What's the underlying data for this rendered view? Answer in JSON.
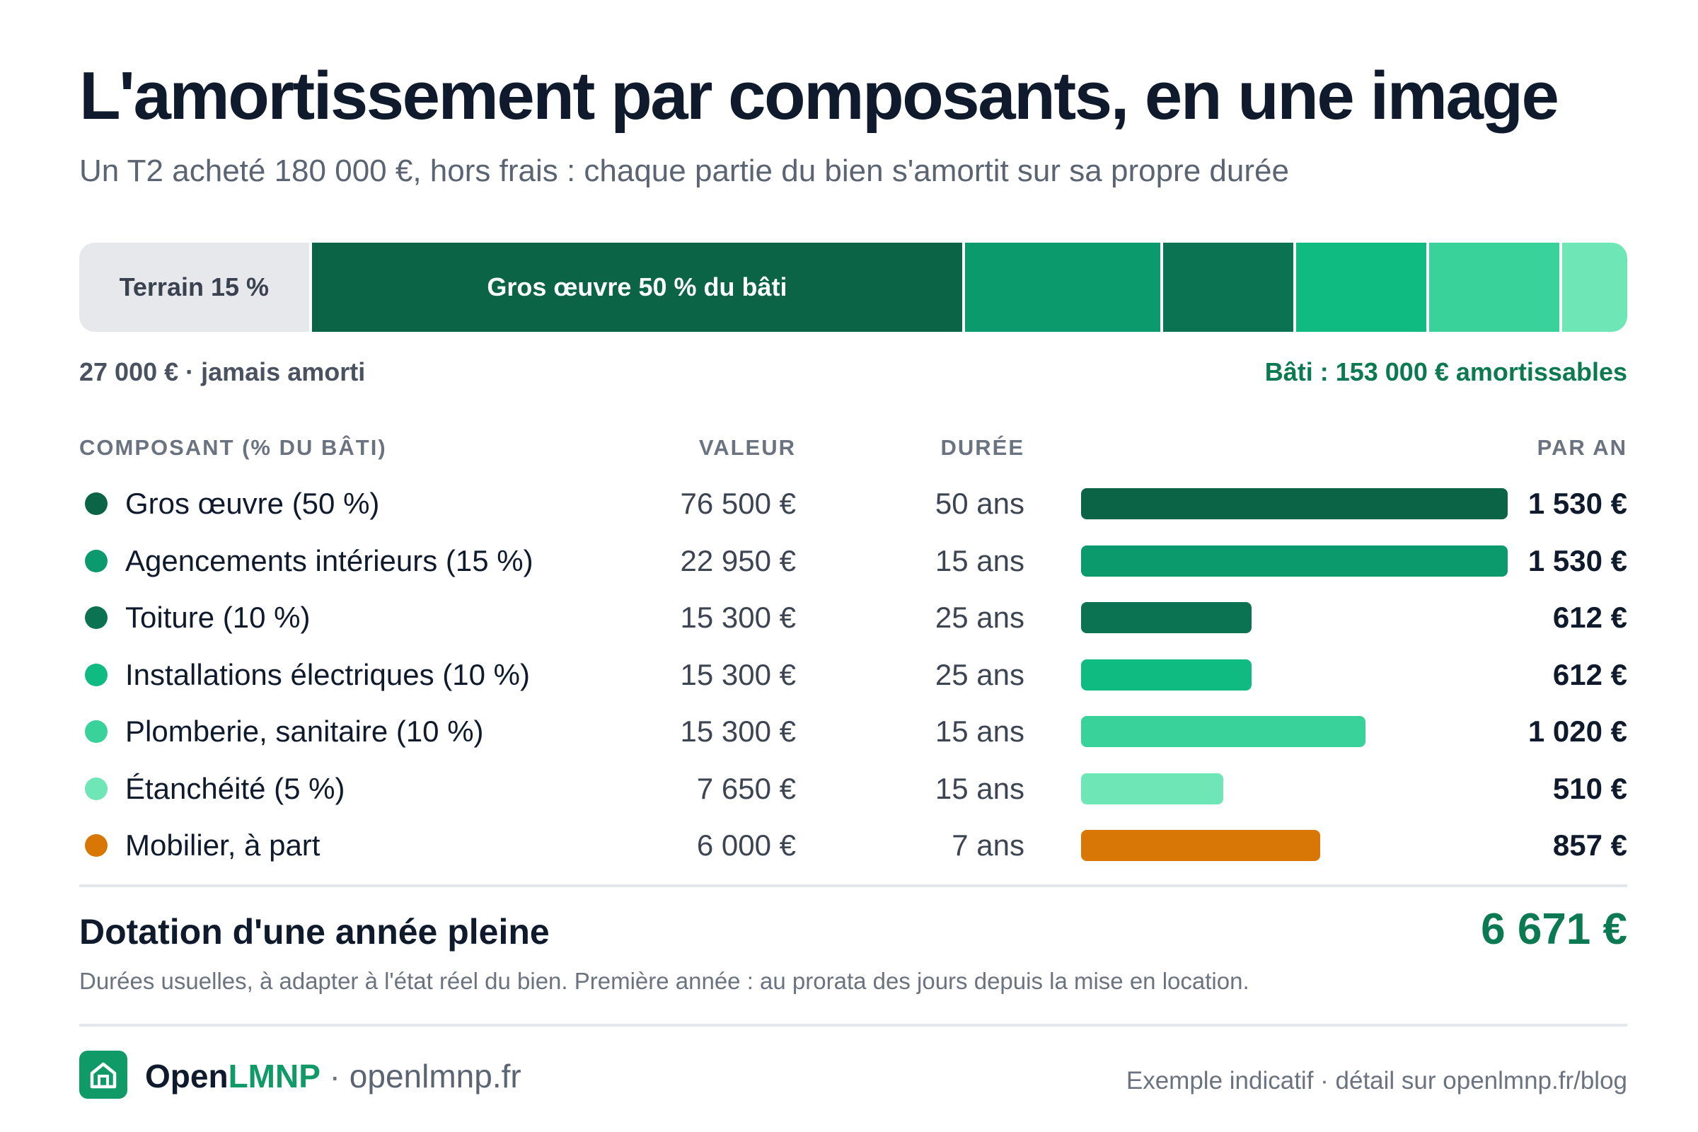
{
  "header": {
    "title": "L'amortissement par composants, en une image",
    "subtitle": "Un T2 acheté 180 000 €, hors frais : chaque partie du bien s'amortit sur sa propre durée"
  },
  "stack_bar": {
    "terrain_label": "Terrain 15 %",
    "gros_oeuvre_label": "Gros œuvre 50 % du bâti",
    "terrain_caption": "27 000 € · jamais amorti",
    "bati_caption": "Bâti : 153 000 € amortissables"
  },
  "table": {
    "headers": {
      "component": "COMPOSANT (% DU BÂTI)",
      "value": "VALEUR",
      "duration": "DURÉE",
      "per_year": "PAR AN"
    },
    "rows": [
      {
        "name": "Gros œuvre (50 %)",
        "value": "76 500 €",
        "duration": "50 ans",
        "per_year": "1 530 €"
      },
      {
        "name": "Agencements intérieurs (15 %)",
        "value": "22 950 €",
        "duration": "15 ans",
        "per_year": "1 530 €"
      },
      {
        "name": "Toiture (10 %)",
        "value": "15 300 €",
        "duration": "25 ans",
        "per_year": "612 €"
      },
      {
        "name": "Installations électriques (10 %)",
        "value": "15 300 €",
        "duration": "25 ans",
        "per_year": "612 €"
      },
      {
        "name": "Plomberie, sanitaire (10 %)",
        "value": "15 300 €",
        "duration": "15 ans",
        "per_year": "1 020 €"
      },
      {
        "name": "Étanchéité (5 %)",
        "value": "7 650 €",
        "duration": "15 ans",
        "per_year": "510 €"
      },
      {
        "name": "Mobilier, à part",
        "value": "6 000 €",
        "duration": "7 ans",
        "per_year": "857 €"
      }
    ]
  },
  "summary": {
    "label": "Dotation d'une année pleine",
    "value": "6 671 €",
    "note": "Durées usuelles, à adapter à l'état réel du bien. Première année : au prorata des jours depuis la mise en location."
  },
  "footer": {
    "brand_prefix": "Open",
    "brand_suffix": "LMNP",
    "separator": " · ",
    "site": "openlmnp.fr",
    "right_text": "Exemple indicatif · détail sur openlmnp.fr/blog",
    "logo_icon": "house-icon"
  },
  "colors": {
    "gros_oeuvre": "#0b6446",
    "agencements": "#0b9a6b",
    "toiture": "#0b7252",
    "installations": "#10bb81",
    "plomberie": "#38d29a",
    "etancheite": "#6ee6b6",
    "mobilier": "#d97706",
    "terrain": "#e6e8ec",
    "accent_green": "#0b7a52"
  },
  "chart_data": [
    {
      "type": "bar",
      "stacked": true,
      "categories": [
        "Terrain",
        "Gros œuvre",
        "Agencements intérieurs",
        "Toiture",
        "Installations électriques",
        "Plomberie, sanitaire",
        "Étanchéité"
      ],
      "values": [
        27000,
        76500,
        22950,
        15300,
        15300,
        15300,
        7650
      ],
      "total": 180000
    },
    {
      "type": "bar",
      "orientation": "horizontal",
      "categories": [
        "Gros œuvre (50 %)",
        "Agencements intérieurs (15 %)",
        "Toiture (10 %)",
        "Installations électriques (10 %)",
        "Plomberie, sanitaire (10 %)",
        "Étanchéité (5 %)",
        "Mobilier, à part"
      ],
      "values": [
        1530,
        1530,
        612,
        612,
        1020,
        510,
        857
      ],
      "xlim": [
        0,
        1530
      ]
    }
  ]
}
